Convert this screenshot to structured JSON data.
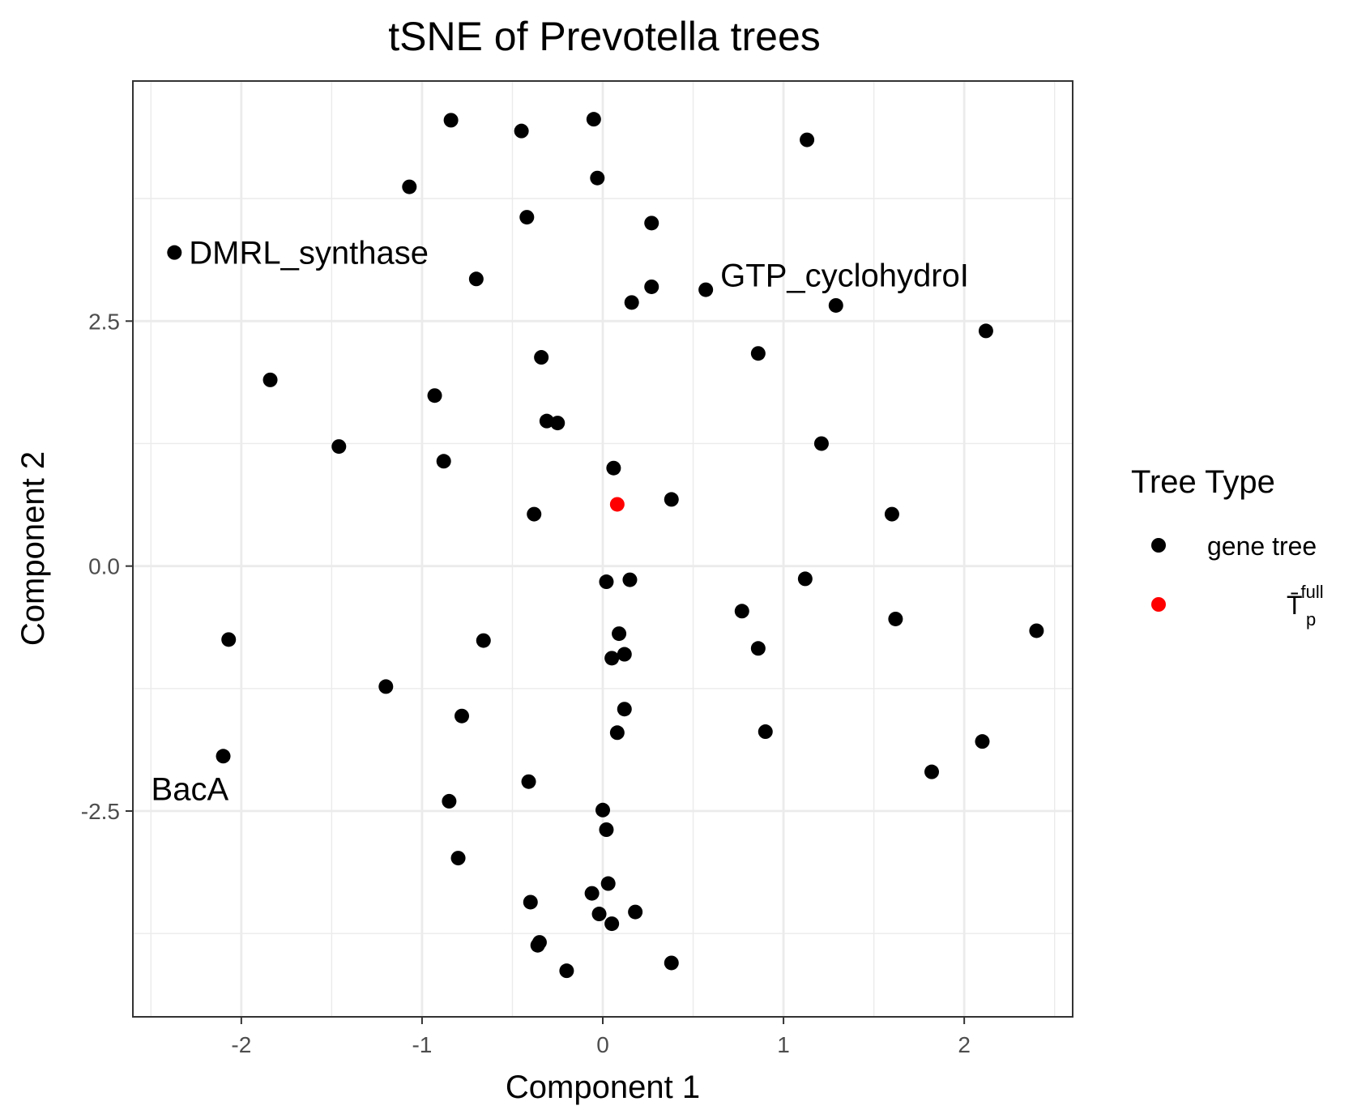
{
  "chart_data": {
    "type": "scatter",
    "title": "tSNE of Prevotella trees",
    "xlabel": "Component 1",
    "ylabel": "Component 2",
    "xlim": [
      -2.6,
      2.6
    ],
    "ylim": [
      -4.6,
      4.95
    ],
    "xticks": [
      -2,
      -1,
      0,
      1,
      2
    ],
    "xtick_labels": [
      "-2",
      "-1",
      "0",
      "1",
      "2"
    ],
    "yticks": [
      -2.5,
      0,
      2.5
    ],
    "ytick_labels": [
      "-2.5",
      "0.0",
      "2.5"
    ],
    "grid": true,
    "legend": {
      "title": "Tree Type",
      "placement": "right",
      "entries": [
        {
          "label": "gene tree",
          "color": "#000000"
        },
        {
          "label": "T̄",
          "label_superscript": "full",
          "label_subscript": "p",
          "color": "#ff0000"
        }
      ]
    },
    "series": [
      {
        "name": "gene tree",
        "color": "#000000",
        "points": [
          {
            "x": -0.84,
            "y": 4.55
          },
          {
            "x": -0.45,
            "y": 4.44
          },
          {
            "x": -0.05,
            "y": 4.56
          },
          {
            "x": 1.13,
            "y": 4.35
          },
          {
            "x": -1.07,
            "y": 3.87
          },
          {
            "x": -0.03,
            "y": 3.96
          },
          {
            "x": -0.42,
            "y": 3.56
          },
          {
            "x": 0.27,
            "y": 3.5
          },
          {
            "x": -2.37,
            "y": 3.2
          },
          {
            "x": -0.7,
            "y": 2.93
          },
          {
            "x": 0.27,
            "y": 2.85
          },
          {
            "x": 0.57,
            "y": 2.82
          },
          {
            "x": 0.16,
            "y": 2.69
          },
          {
            "x": 1.29,
            "y": 2.66
          },
          {
            "x": 2.12,
            "y": 2.4
          },
          {
            "x": 0.86,
            "y": 2.17
          },
          {
            "x": -0.34,
            "y": 2.13
          },
          {
            "x": -1.84,
            "y": 1.9
          },
          {
            "x": -0.93,
            "y": 1.74
          },
          {
            "x": -0.31,
            "y": 1.48
          },
          {
            "x": -0.25,
            "y": 1.46
          },
          {
            "x": -1.46,
            "y": 1.22
          },
          {
            "x": 1.21,
            "y": 1.25
          },
          {
            "x": -0.88,
            "y": 1.07
          },
          {
            "x": 0.06,
            "y": 1.0
          },
          {
            "x": 0.38,
            "y": 0.68
          },
          {
            "x": -0.38,
            "y": 0.53
          },
          {
            "x": 1.6,
            "y": 0.53
          },
          {
            "x": 0.02,
            "y": -0.16
          },
          {
            "x": 0.15,
            "y": -0.14
          },
          {
            "x": 1.12,
            "y": -0.13
          },
          {
            "x": 0.77,
            "y": -0.46
          },
          {
            "x": 1.62,
            "y": -0.54
          },
          {
            "x": 2.4,
            "y": -0.66
          },
          {
            "x": -2.07,
            "y": -0.75
          },
          {
            "x": -0.66,
            "y": -0.76
          },
          {
            "x": 0.09,
            "y": -0.69
          },
          {
            "x": 0.86,
            "y": -0.84
          },
          {
            "x": 0.12,
            "y": -0.9
          },
          {
            "x": 0.05,
            "y": -0.94
          },
          {
            "x": -1.2,
            "y": -1.23
          },
          {
            "x": 0.12,
            "y": -1.46
          },
          {
            "x": -0.78,
            "y": -1.53
          },
          {
            "x": 0.08,
            "y": -1.7
          },
          {
            "x": 0.9,
            "y": -1.69
          },
          {
            "x": 2.1,
            "y": -1.79
          },
          {
            "x": -2.1,
            "y": -1.94
          },
          {
            "x": 1.82,
            "y": -2.1
          },
          {
            "x": -0.41,
            "y": -2.2
          },
          {
            "x": -0.85,
            "y": -2.4
          },
          {
            "x": 0.0,
            "y": -2.49
          },
          {
            "x": 0.02,
            "y": -2.69
          },
          {
            "x": -0.8,
            "y": -2.98
          },
          {
            "x": 0.03,
            "y": -3.24
          },
          {
            "x": -0.06,
            "y": -3.34
          },
          {
            "x": -0.4,
            "y": -3.43
          },
          {
            "x": -0.02,
            "y": -3.55
          },
          {
            "x": 0.18,
            "y": -3.53
          },
          {
            "x": 0.05,
            "y": -3.65
          },
          {
            "x": -0.35,
            "y": -3.84
          },
          {
            "x": -0.36,
            "y": -3.87
          },
          {
            "x": -0.2,
            "y": -4.13
          },
          {
            "x": 0.38,
            "y": -4.05
          }
        ]
      },
      {
        "name": "T̄p full",
        "color": "#ff0000",
        "points": [
          {
            "x": 0.08,
            "y": 0.63
          }
        ]
      }
    ],
    "annotations": [
      {
        "text": "DMRL_synthase",
        "x": -2.37,
        "y": 3.2,
        "anchor": "right-of-point"
      },
      {
        "text": "GTP_cyclohydroI",
        "x": 0.57,
        "y": 2.82,
        "anchor": "above-right-of-point"
      },
      {
        "text": "BacA",
        "x": -2.1,
        "y": -1.94,
        "anchor": "below-of-point"
      }
    ]
  }
}
